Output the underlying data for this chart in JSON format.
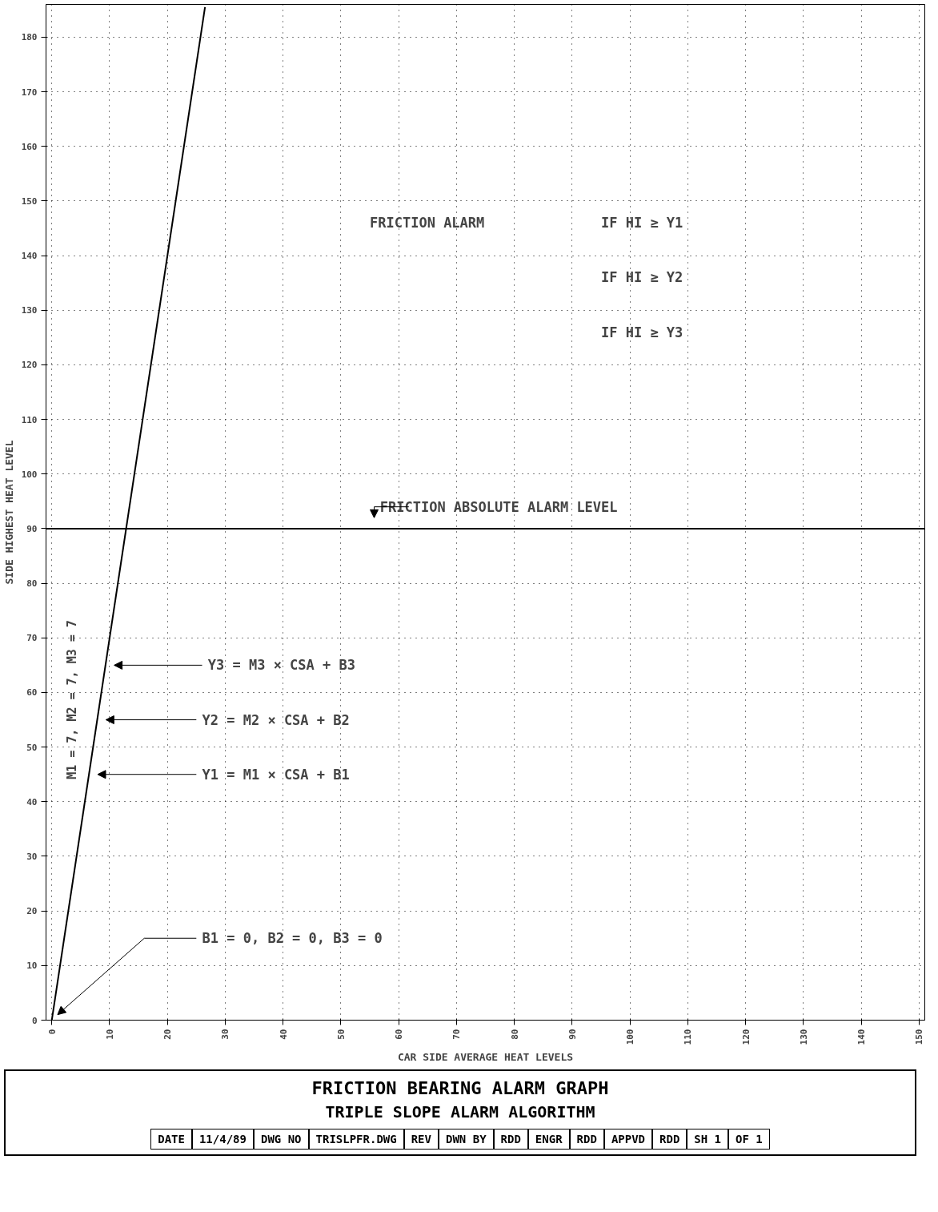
{
  "chart_data": {
    "type": "line",
    "title": "FRICTION BEARING ALARM GRAPH",
    "subtitle": "TRIPLE SLOPE ALARM ALGORITHM",
    "xlabel": "CAR SIDE AVERAGE HEAT LEVELS",
    "ylabel": "SIDE HIGHEST HEAT LEVEL",
    "x": [
      0,
      26.5
    ],
    "series": [
      {
        "color": "#000000",
        "values": [
          0,
          185.5
        ]
      }
    ],
    "xlim": [
      -1,
      151
    ],
    "ylim": [
      0,
      186
    ],
    "xticks": [
      0,
      10,
      20,
      30,
      40,
      50,
      60,
      70,
      80,
      90,
      100,
      110,
      120,
      130,
      140,
      150
    ],
    "yticks": [
      0,
      10,
      20,
      30,
      40,
      50,
      60,
      70,
      80,
      90,
      100,
      110,
      120,
      130,
      140,
      150,
      160,
      170,
      180
    ],
    "grid": true,
    "marker": "none",
    "line_style": "solid",
    "ref_lines": [
      {
        "axis": "y",
        "value": 90,
        "label": "FRICTION ABSOLUTE ALARM LEVEL",
        "color": "#000000",
        "line_style": "solid"
      }
    ],
    "annotations": [
      "FRICTION ALARM",
      "IF HI ≥ Y1",
      "IF HI ≥ Y2",
      "IF HI ≥ Y3",
      "M1 = 7,  M2 = 7,  M3 = 7",
      "Y3 = M3 × CSA + B3",
      "Y2 = M2 × CSA + B2",
      "Y1 = M1 × CSA + B1",
      "B1 = 0,   B2 = 0,   B3 = 0",
      "DATE",
      "11/4/89",
      "DWG NO",
      "TRISLPFR.DWG",
      "REV",
      "DWN BY",
      "RDD",
      "ENGR",
      "RDD",
      "APPVD",
      "RDD",
      "SH 1",
      "OF 1"
    ]
  }
}
